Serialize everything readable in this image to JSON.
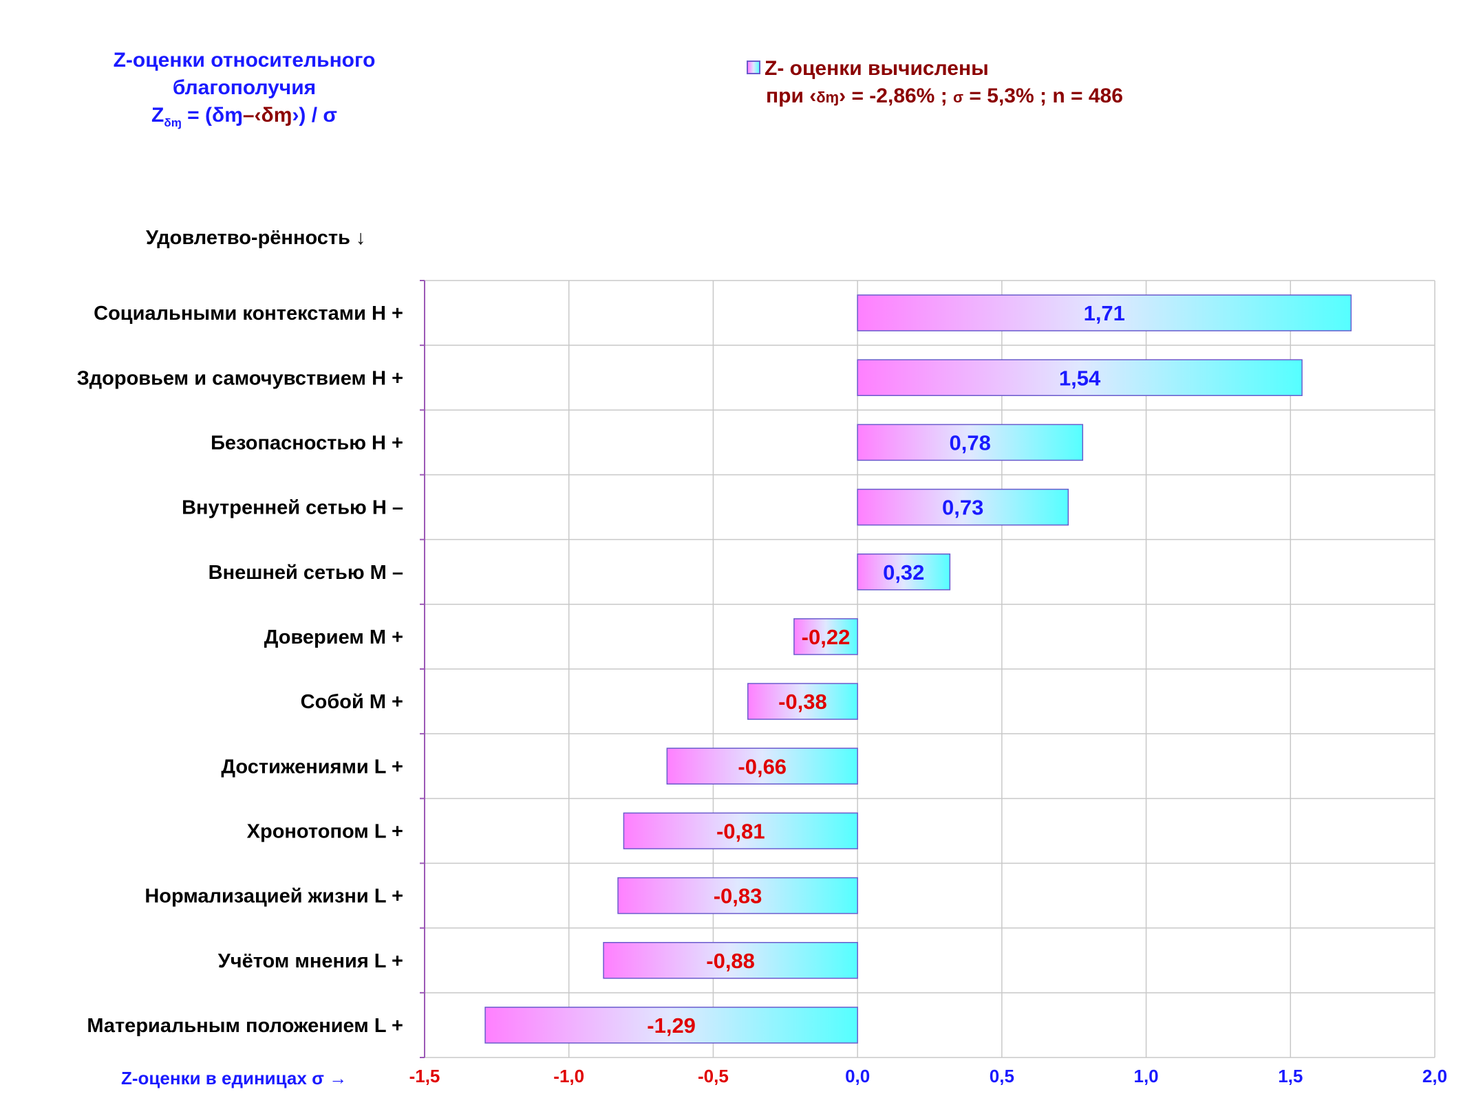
{
  "title": {
    "line1": "Z-оценки  относительного",
    "line2": "благополучия",
    "formula_z": "Z",
    "formula_sub": "δ",
    "formula_mid": " = (δ",
    "formula_dash": "–‹δ",
    "formula_close": "›)  / σ",
    "formula_m": "ɱ"
  },
  "legend": {
    "label": "Z- оценки вычислены",
    "line2_a": "при ‹",
    "line2_b": "δɱ",
    "line2_c": "› = -2,86% ; ",
    "line2_sigma": "σ",
    "line2_d": " = 5,3% ; n = 486"
  },
  "y_axis_title": "Удовлетво-рённость ↓",
  "x_axis_title": "Z-оценки в единицах σ →",
  "colors": {
    "positive_label": "#1a1aff",
    "negative_label": "#e00000",
    "bar_left": "#ff80ff",
    "bar_right": "#55ffff",
    "bar_border": "#6a5acd",
    "grid": "#c8c8c8",
    "axis": "#9b59b6"
  },
  "chart_data": {
    "type": "bar",
    "orientation": "horizontal",
    "categories": [
      "Социальными контекстами  Н +",
      "Здоровьем и самочувствием  Н +",
      "Безопасностью  Н +",
      "Внутренней сетью  Н –",
      "Внешней сетью  М –",
      "Доверием  М +",
      "Собой  М +",
      "Достижениями  L +",
      "Хронотопом  L +",
      "Нормализацией жизни  L +",
      "Учётом мнения  L +",
      "Материальным положением  L +"
    ],
    "values": [
      1.71,
      1.54,
      0.78,
      0.73,
      0.32,
      -0.22,
      -0.38,
      -0.66,
      -0.81,
      -0.83,
      -0.88,
      -1.29
    ],
    "value_labels": [
      "1,71",
      "1,54",
      "0,78",
      "0,73",
      "0,32",
      "-0,22",
      "-0,38",
      "-0,66",
      "-0,81",
      "-0,83",
      "-0,88",
      "-1,29"
    ],
    "xlim": [
      -1.5,
      2.0
    ],
    "xticks": [
      -1.5,
      -1.0,
      -0.5,
      0.0,
      0.5,
      1.0,
      1.5,
      2.0
    ],
    "xtick_labels": [
      "-1,5",
      "-1,0",
      "-0,5",
      "0,0",
      "0,5",
      "1,0",
      "1,5",
      "2,0"
    ],
    "grid": true
  }
}
